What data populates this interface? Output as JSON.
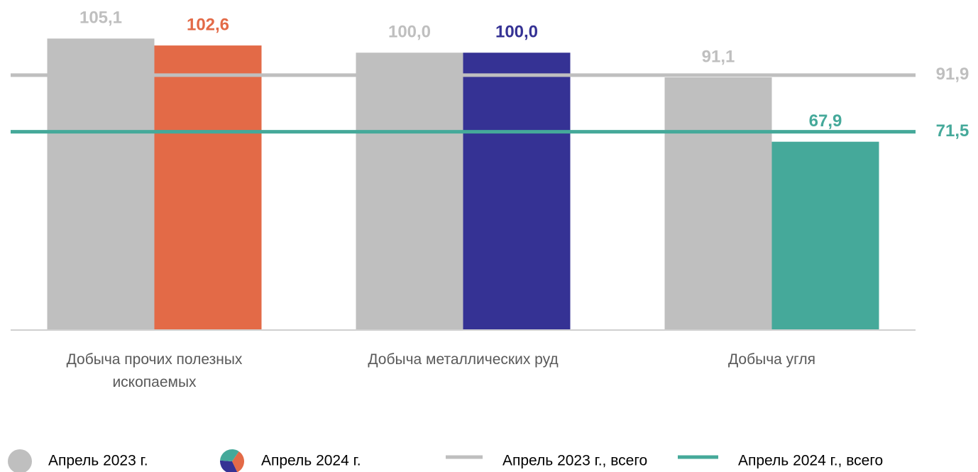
{
  "chart_data": {
    "type": "bar",
    "categories": [
      "Добыча прочих полезных ископаемых",
      "Добыча металлических руд",
      "Добыча угля"
    ],
    "series": [
      {
        "name": "Апрель 2023 г.",
        "color": "#bfbfbf",
        "values": [
          105.1,
          100.0,
          91.1
        ],
        "value_labels": [
          "105,1",
          "100,0",
          "91,1"
        ]
      },
      {
        "name": "Апрель 2024 г.",
        "colors": [
          "#e36a47",
          "#353294",
          "#45a99a"
        ],
        "values": [
          102.6,
          100.0,
          67.9
        ],
        "value_labels": [
          "102,6",
          "100,0",
          "67,9"
        ]
      }
    ],
    "lines": [
      {
        "name": "Апрель 2023 г., всего",
        "color": "#bfbfbf",
        "value": 91.9,
        "value_label": "91,9"
      },
      {
        "name": "Апрель 2024 г., всего",
        "color": "#45a99a",
        "value": 71.5,
        "value_label": "71,5"
      }
    ],
    "ylim": [
      0,
      119
    ]
  }
}
